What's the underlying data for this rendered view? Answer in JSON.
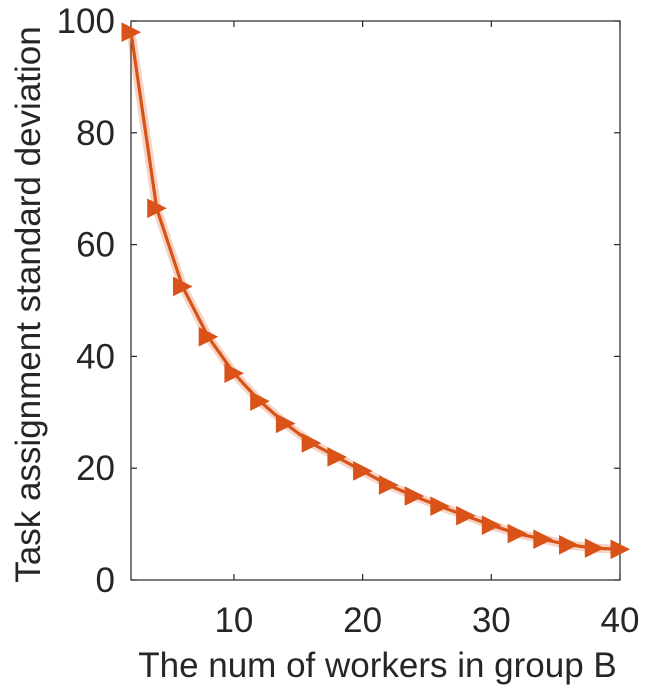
{
  "chart_data": {
    "type": "line",
    "xlabel": "The num of workers in group B",
    "ylabel": "Task assignment standard deviation",
    "xlim": [
      2,
      40
    ],
    "ylim": [
      0,
      100
    ],
    "xticks": [
      10,
      20,
      30,
      40
    ],
    "yticks": [
      0,
      20,
      40,
      60,
      80,
      100
    ],
    "grid": false,
    "box": true,
    "marker": "triangle-right",
    "series": [
      {
        "name": "",
        "color": "#D95319",
        "x": [
          2,
          4,
          6,
          8,
          10,
          12,
          14,
          16,
          18,
          20,
          22,
          24,
          26,
          28,
          30,
          32,
          34,
          36,
          38,
          40
        ],
        "values": [
          98,
          66.5,
          52.5,
          43.5,
          37,
          32,
          28,
          24.5,
          22,
          19.5,
          17,
          15,
          13.2,
          11.5,
          9.8,
          8.3,
          7.3,
          6.3,
          5.7,
          5.5
        ]
      }
    ]
  }
}
